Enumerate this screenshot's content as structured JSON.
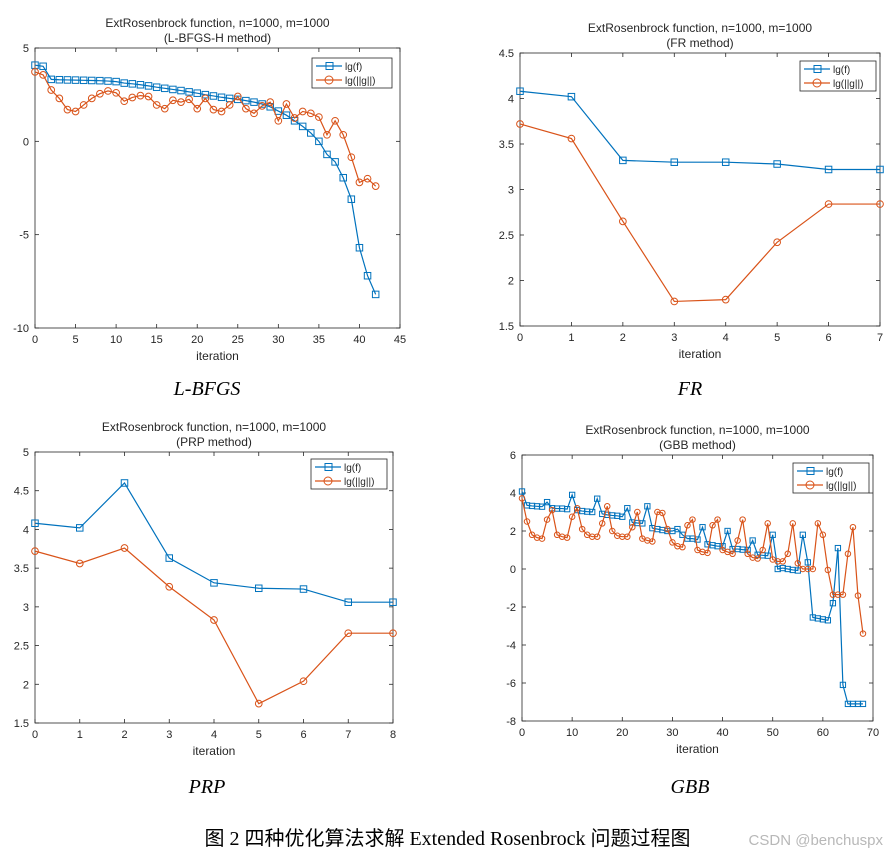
{
  "colors": {
    "f": "#0072BD",
    "g": "#D95319",
    "axis": "#262626",
    "text": "#262626"
  },
  "captions": [
    "L-BFGS",
    "FR",
    "PRP",
    "GBB"
  ],
  "figure_caption": "图 2  四种优化算法求解 Extended Rosenbrock 问题过程图",
  "watermark": "CSDN @benchuspx",
  "chart_data": [
    {
      "type": "line",
      "title": "ExtRosenbrock function, n=1000, m=1000",
      "subtitle": "(L-BFGS-H method)",
      "xlabel": "iteration",
      "ylabel": "",
      "xlim": [
        0,
        45
      ],
      "ylim": [
        -10,
        5
      ],
      "xticks": [
        0,
        5,
        10,
        15,
        20,
        25,
        30,
        35,
        40,
        45
      ],
      "yticks": [
        -10,
        -5,
        0,
        5
      ],
      "legend_position": "top-right",
      "series": [
        {
          "name": "lg(f)",
          "marker": "square",
          "x": [
            0,
            1,
            2,
            3,
            4,
            5,
            6,
            7,
            8,
            9,
            10,
            11,
            12,
            13,
            14,
            15,
            16,
            17,
            18,
            19,
            20,
            21,
            22,
            23,
            24,
            25,
            26,
            27,
            28,
            29,
            30,
            31,
            32,
            33,
            34,
            35,
            36,
            37,
            38,
            39,
            40,
            41,
            42
          ],
          "y": [
            4.08,
            4.02,
            3.32,
            3.3,
            3.29,
            3.28,
            3.27,
            3.26,
            3.25,
            3.23,
            3.2,
            3.12,
            3.08,
            3.03,
            2.97,
            2.9,
            2.84,
            2.78,
            2.72,
            2.65,
            2.58,
            2.5,
            2.43,
            2.36,
            2.3,
            2.25,
            2.18,
            2.1,
            2.0,
            1.85,
            1.62,
            1.4,
            1.1,
            0.8,
            0.45,
            0.0,
            -0.7,
            -1.1,
            -1.95,
            -3.1,
            -5.7,
            -7.2,
            -8.2
          ]
        },
        {
          "name": "lg(||g||)",
          "marker": "circle",
          "x": [
            0,
            1,
            2,
            3,
            4,
            5,
            6,
            7,
            8,
            9,
            10,
            11,
            12,
            13,
            14,
            15,
            16,
            17,
            18,
            19,
            20,
            21,
            22,
            23,
            24,
            25,
            26,
            27,
            28,
            29,
            30,
            31,
            32,
            33,
            34,
            35,
            36,
            37,
            38,
            39,
            40,
            41,
            42
          ],
          "y": [
            3.72,
            3.56,
            2.75,
            2.3,
            1.7,
            1.6,
            1.95,
            2.3,
            2.55,
            2.7,
            2.6,
            2.15,
            2.35,
            2.45,
            2.4,
            1.95,
            1.75,
            2.2,
            2.1,
            2.25,
            1.75,
            2.3,
            1.7,
            1.6,
            1.95,
            2.4,
            1.75,
            1.5,
            1.9,
            2.1,
            1.1,
            2.0,
            1.25,
            1.6,
            1.5,
            1.3,
            0.35,
            1.1,
            0.35,
            -0.85,
            -2.2,
            -2.0,
            -2.4
          ]
        }
      ]
    },
    {
      "type": "line",
      "title": "ExtRosenbrock function, n=1000, m=1000",
      "subtitle": "(FR method)",
      "xlabel": "iteration",
      "ylabel": "",
      "xlim": [
        0,
        7
      ],
      "ylim": [
        1.5,
        4.5
      ],
      "xticks": [
        0,
        1,
        2,
        3,
        4,
        5,
        6,
        7
      ],
      "yticks": [
        1.5,
        2,
        2.5,
        3,
        3.5,
        4,
        4.5
      ],
      "legend_position": "top-right",
      "series": [
        {
          "name": "lg(f)",
          "marker": "square",
          "x": [
            0,
            1,
            2,
            3,
            4,
            5,
            6,
            7
          ],
          "y": [
            4.08,
            4.02,
            3.32,
            3.3,
            3.3,
            3.28,
            3.22,
            3.22
          ]
        },
        {
          "name": "lg(||g||)",
          "marker": "circle",
          "x": [
            0,
            1,
            2,
            3,
            4,
            5,
            6,
            7
          ],
          "y": [
            3.72,
            3.56,
            2.65,
            1.77,
            1.79,
            2.42,
            2.84,
            2.84
          ]
        }
      ]
    },
    {
      "type": "line",
      "title": "ExtRosenbrock function, n=1000, m=1000",
      "subtitle": "(PRP method)",
      "xlabel": "iteration",
      "ylabel": "",
      "xlim": [
        0,
        8
      ],
      "ylim": [
        1.5,
        5
      ],
      "xticks": [
        0,
        1,
        2,
        3,
        4,
        5,
        6,
        7,
        8
      ],
      "yticks": [
        1.5,
        2,
        2.5,
        3,
        3.5,
        4,
        4.5,
        5
      ],
      "legend_position": "top-right",
      "series": [
        {
          "name": "lg(f)",
          "marker": "square",
          "x": [
            0,
            1,
            2,
            3,
            4,
            5,
            6,
            7,
            8
          ],
          "y": [
            4.08,
            4.02,
            4.6,
            3.63,
            3.31,
            3.24,
            3.23,
            3.06,
            3.06
          ]
        },
        {
          "name": "lg(||g||)",
          "marker": "circle",
          "x": [
            0,
            1,
            2,
            3,
            4,
            5,
            6,
            7,
            8
          ],
          "y": [
            3.72,
            3.56,
            3.76,
            3.26,
            2.83,
            1.75,
            2.04,
            2.66,
            2.66
          ]
        }
      ]
    },
    {
      "type": "line",
      "title": "ExtRosenbrock function, n=1000, m=1000",
      "subtitle": "(GBB method)",
      "xlabel": "iteration",
      "ylabel": "",
      "xlim": [
        0,
        70
      ],
      "ylim": [
        -8,
        6
      ],
      "xticks": [
        0,
        10,
        20,
        30,
        40,
        50,
        60,
        70
      ],
      "yticks": [
        -8,
        -6,
        -4,
        -2,
        0,
        2,
        4,
        6
      ],
      "legend_position": "top-right",
      "series": [
        {
          "name": "lg(f)",
          "marker": "square",
          "x": [
            0,
            1,
            2,
            3,
            4,
            5,
            6,
            7,
            8,
            9,
            10,
            11,
            12,
            13,
            14,
            15,
            16,
            17,
            18,
            19,
            20,
            21,
            22,
            23,
            24,
            25,
            26,
            27,
            28,
            29,
            30,
            31,
            32,
            33,
            34,
            35,
            36,
            37,
            38,
            39,
            40,
            41,
            42,
            43,
            44,
            45,
            46,
            47,
            48,
            49,
            50,
            51,
            52,
            53,
            54,
            55,
            56,
            57,
            58,
            59,
            60,
            61,
            62,
            63,
            64,
            65,
            66,
            67,
            68
          ],
          "y": [
            4.08,
            3.35,
            3.32,
            3.3,
            3.28,
            3.52,
            3.2,
            3.18,
            3.18,
            3.15,
            3.9,
            3.1,
            3.05,
            3.02,
            3.0,
            3.7,
            2.9,
            2.85,
            2.82,
            2.8,
            2.75,
            3.2,
            2.45,
            2.42,
            2.4,
            3.3,
            2.15,
            2.1,
            2.05,
            2.0,
            2.0,
            2.1,
            1.8,
            1.6,
            1.6,
            1.55,
            2.2,
            1.3,
            1.25,
            1.2,
            1.2,
            2.0,
            1.05,
            1.05,
            1.02,
            1.0,
            1.5,
            0.75,
            0.72,
            0.7,
            1.8,
            0.0,
            0.05,
            0.0,
            -0.05,
            -0.08,
            1.8,
            0.35,
            -2.55,
            -2.6,
            -2.65,
            -2.7,
            -1.8,
            1.1,
            -6.1,
            -7.1,
            -7.1,
            -7.1,
            -7.1
          ]
        },
        {
          "name": "lg(||g||)",
          "marker": "circle",
          "x": [
            0,
            1,
            2,
            3,
            4,
            5,
            6,
            7,
            8,
            9,
            10,
            11,
            12,
            13,
            14,
            15,
            16,
            17,
            18,
            19,
            20,
            21,
            22,
            23,
            24,
            25,
            26,
            27,
            28,
            29,
            30,
            31,
            32,
            33,
            34,
            35,
            36,
            37,
            38,
            39,
            40,
            41,
            42,
            43,
            44,
            45,
            46,
            47,
            48,
            49,
            50,
            51,
            52,
            53,
            54,
            55,
            56,
            57,
            58,
            59,
            60,
            61,
            62,
            63,
            64,
            65,
            66,
            67,
            68
          ],
          "y": [
            3.72,
            2.5,
            1.8,
            1.65,
            1.6,
            2.6,
            3.1,
            1.8,
            1.7,
            1.65,
            2.75,
            3.2,
            2.1,
            1.8,
            1.7,
            1.7,
            2.4,
            3.3,
            2.0,
            1.75,
            1.7,
            1.7,
            2.2,
            3.0,
            1.6,
            1.5,
            1.45,
            3.0,
            2.95,
            2.1,
            1.4,
            1.2,
            1.15,
            2.3,
            2.6,
            1.0,
            0.9,
            0.85,
            2.3,
            2.6,
            1.0,
            0.9,
            0.8,
            1.5,
            2.6,
            0.8,
            0.6,
            0.55,
            1.0,
            2.4,
            0.5,
            0.4,
            0.4,
            0.8,
            2.4,
            0.3,
            0.0,
            0.0,
            0.0,
            2.4,
            1.8,
            -0.05,
            -1.35,
            -1.35,
            -1.35,
            0.8,
            2.2,
            -1.4,
            -3.4
          ]
        }
      ]
    }
  ]
}
